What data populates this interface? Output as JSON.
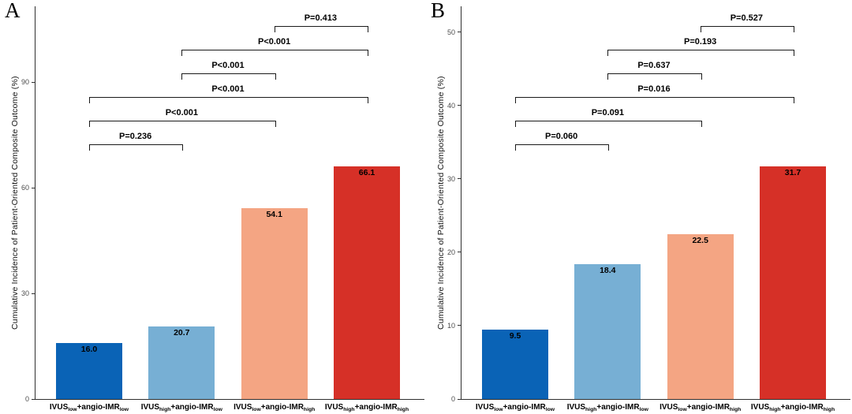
{
  "figure": {
    "background": "#ffffff"
  },
  "chart_data": [
    {
      "type": "bar",
      "panel_letter": "A",
      "title": "",
      "xlabel": "",
      "ylabel": "Cumulative Incidence of Patient-Oriented Composite Outcome (%)",
      "categories": [
        "IVUS~low~+angio-IMR~low~",
        "IVUS~high~+angio-IMR~low~",
        "IVUS~low~+angio-IMR~high~",
        "IVUS~high~+angio-IMR~high~"
      ],
      "values": [
        16.0,
        20.7,
        54.1,
        66.1
      ],
      "value_labels": [
        "16.0",
        "20.7",
        "54.1",
        "66.1"
      ],
      "colors": [
        "#0A63B6",
        "#77AFD4",
        "#F4A583",
        "#D63027"
      ],
      "yticks": [
        0,
        30,
        60,
        90
      ],
      "ylim": [
        0,
        111.5
      ],
      "grid": false,
      "legend": "none",
      "comparisons": [
        {
          "bars": [
            3,
            4
          ],
          "label": "P=0.413"
        },
        {
          "bars": [
            2,
            4
          ],
          "label": "P<0.001"
        },
        {
          "bars": [
            2,
            3
          ],
          "label": "P<0.001"
        },
        {
          "bars": [
            1,
            4
          ],
          "label": "P<0.001"
        },
        {
          "bars": [
            1,
            3
          ],
          "label": "P<0.001"
        },
        {
          "bars": [
            1,
            2
          ],
          "label": "P=0.236"
        }
      ]
    },
    {
      "type": "bar",
      "panel_letter": "B",
      "title": "",
      "xlabel": "",
      "ylabel": "Cumulative Incidence of Patient-Oriented Composite Outcome (%)",
      "categories": [
        "IVUS~low~+angio-IMR~low~",
        "IVUS~high~+angio-IMR~low~",
        "IVUS~low~+angio-IMR~high~",
        "IVUS~high~+angio-IMR~high~"
      ],
      "values": [
        9.5,
        18.4,
        22.5,
        31.7
      ],
      "value_labels": [
        "9.5",
        "18.4",
        "22.5",
        "31.7"
      ],
      "colors": [
        "#0A63B6",
        "#77AFD4",
        "#F4A583",
        "#D63027"
      ],
      "yticks": [
        0,
        10,
        20,
        30,
        40,
        50
      ],
      "ylim": [
        0,
        53.5
      ],
      "grid": false,
      "legend": "none",
      "comparisons": [
        {
          "bars": [
            3,
            4
          ],
          "label": "P=0.527"
        },
        {
          "bars": [
            2,
            4
          ],
          "label": "P=0.193"
        },
        {
          "bars": [
            2,
            3
          ],
          "label": "P=0.637"
        },
        {
          "bars": [
            1,
            4
          ],
          "label": "P=0.016"
        },
        {
          "bars": [
            1,
            3
          ],
          "label": "P=0.091"
        },
        {
          "bars": [
            1,
            2
          ],
          "label": "P=0.060"
        }
      ]
    }
  ]
}
